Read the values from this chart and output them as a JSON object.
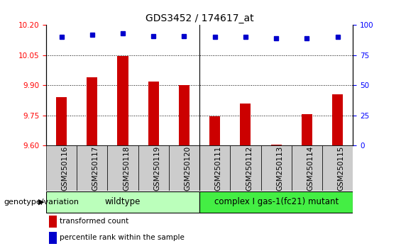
{
  "title": "GDS3452 / 174617_at",
  "samples": [
    "GSM250116",
    "GSM250117",
    "GSM250118",
    "GSM250119",
    "GSM250120",
    "GSM250111",
    "GSM250112",
    "GSM250113",
    "GSM250114",
    "GSM250115"
  ],
  "transformed_count": [
    9.84,
    9.94,
    10.045,
    9.92,
    9.9,
    9.745,
    9.81,
    9.605,
    9.755,
    9.855
  ],
  "percentile_rank": [
    90,
    92,
    93,
    91,
    91,
    90,
    90,
    89,
    89,
    90
  ],
  "ylim_left": [
    9.6,
    10.2
  ],
  "ylim_right": [
    0,
    100
  ],
  "yticks_left": [
    9.6,
    9.75,
    9.9,
    10.05,
    10.2
  ],
  "yticks_right": [
    0,
    25,
    50,
    75,
    100
  ],
  "bar_color": "#cc0000",
  "dot_color": "#0000cc",
  "groups": [
    {
      "label": "wildtype",
      "start": 0,
      "end": 4,
      "color": "#bbffbb"
    },
    {
      "label": "complex I gas-1(fc21) mutant",
      "start": 5,
      "end": 9,
      "color": "#44ee44"
    }
  ],
  "group_label": "genotype/variation",
  "legend_items": [
    {
      "color": "#cc0000",
      "label": "transformed count"
    },
    {
      "color": "#0000cc",
      "label": "percentile rank within the sample"
    }
  ],
  "title_fontsize": 10,
  "tick_fontsize": 7.5,
  "label_fontsize": 8,
  "group_fontsize": 8.5
}
